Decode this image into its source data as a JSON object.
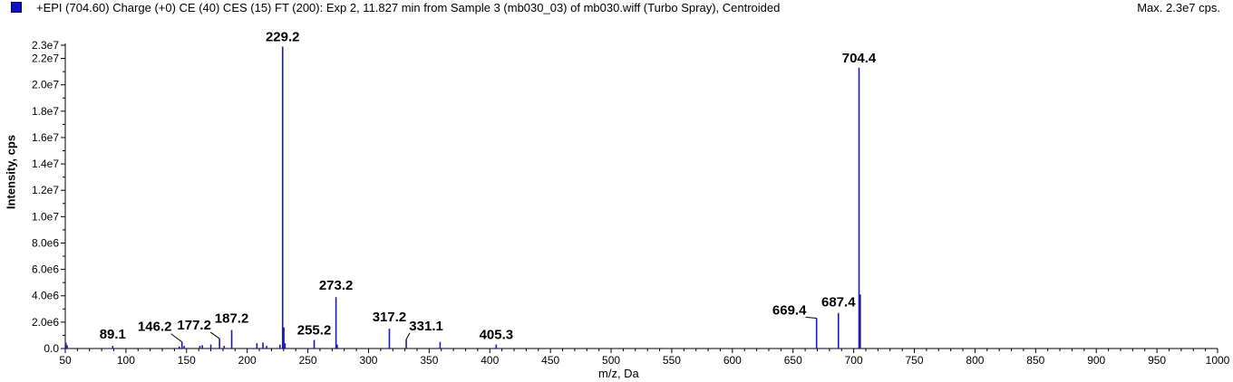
{
  "header": {
    "title": "+EPI (704.60) Charge (+0) CE (40) CES (15) FT (200): Exp 2, 11.827 min from Sample 3 (mb030_03) of mb030.wiff (Turbo Spray), Centroided",
    "max_label": "Max. 2.3e7 cps.",
    "series_color": "#1a1ab4"
  },
  "chart_data": {
    "type": "bar",
    "title": "+EPI (704.60) Charge (+0) CE (40) CES (15) FT (200): Exp 2, 11.827 min from Sample 3 (mb030_03) of mb030.wiff (Turbo Spray), Centroided",
    "xlabel": "m/z, Da",
    "ylabel": "Intensity, cps",
    "xlim": [
      50,
      1000
    ],
    "ylim": [
      0,
      23000000
    ],
    "x_ticks": [
      "50",
      "100",
      "150",
      "200",
      "250",
      "300",
      "350",
      "400",
      "450",
      "500",
      "550",
      "600",
      "650",
      "700",
      "750",
      "800",
      "850",
      "900",
      "950",
      "1000"
    ],
    "y_ticks": [
      "0.0",
      "2.0e6",
      "4.0e6",
      "6.0e6",
      "8.0e6",
      "1.0e7",
      "1.2e7",
      "1.4e7",
      "1.6e7",
      "1.8e7",
      "2.0e7",
      "2.2e7",
      "2.3e7"
    ],
    "peaks": [
      {
        "x": 50.5,
        "y": 450000
      },
      {
        "x": 51.5,
        "y": 250000
      },
      {
        "x": 89.1,
        "y": 200000,
        "label": "89.1"
      },
      {
        "x": 144.0,
        "y": 150000
      },
      {
        "x": 146.2,
        "y": 500000,
        "label": "146.2"
      },
      {
        "x": 148.0,
        "y": 200000
      },
      {
        "x": 161.0,
        "y": 200000
      },
      {
        "x": 163.0,
        "y": 250000
      },
      {
        "x": 170.0,
        "y": 300000
      },
      {
        "x": 177.2,
        "y": 750000,
        "label": "177.2"
      },
      {
        "x": 181.0,
        "y": 200000
      },
      {
        "x": 187.2,
        "y": 1400000,
        "label": "187.2"
      },
      {
        "x": 208.0,
        "y": 400000
      },
      {
        "x": 213.0,
        "y": 450000
      },
      {
        "x": 216.0,
        "y": 200000
      },
      {
        "x": 227.0,
        "y": 300000
      },
      {
        "x": 229.2,
        "y": 22900000,
        "label": "229.2"
      },
      {
        "x": 230.2,
        "y": 1600000
      },
      {
        "x": 231.2,
        "y": 400000
      },
      {
        "x": 255.2,
        "y": 650000,
        "label": "255.2"
      },
      {
        "x": 273.2,
        "y": 3900000,
        "label": "273.2"
      },
      {
        "x": 274.2,
        "y": 300000
      },
      {
        "x": 317.2,
        "y": 1500000,
        "label": "317.2"
      },
      {
        "x": 331.1,
        "y": 700000,
        "label": "331.1"
      },
      {
        "x": 359.0,
        "y": 500000
      },
      {
        "x": 405.3,
        "y": 300000,
        "label": "405.3"
      },
      {
        "x": 669.4,
        "y": 2300000,
        "label": "669.4"
      },
      {
        "x": 687.4,
        "y": 2700000,
        "label": "687.4"
      },
      {
        "x": 704.4,
        "y": 21300000,
        "label": "704.4"
      },
      {
        "x": 705.4,
        "y": 4100000
      }
    ],
    "grid": false,
    "legend": "top-left"
  }
}
